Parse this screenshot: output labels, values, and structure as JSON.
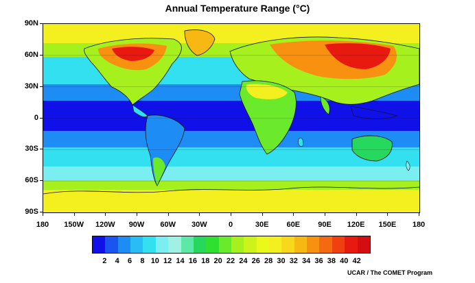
{
  "title": "Annual Temperature Range (°C)",
  "credit": "UCAR / The COMET Program",
  "lat_labels": [
    "90N",
    "60N",
    "30N",
    "0",
    "30S",
    "60S",
    "90S"
  ],
  "lon_labels": [
    "180",
    "150W",
    "120W",
    "90W",
    "60W",
    "30W",
    "0",
    "30E",
    "60E",
    "90E",
    "120E",
    "150E",
    "180"
  ],
  "colorbar": {
    "labels": [
      "2",
      "4",
      "6",
      "8",
      "10",
      "12",
      "14",
      "16",
      "18",
      "20",
      "22",
      "24",
      "26",
      "28",
      "30",
      "32",
      "34",
      "36",
      "38",
      "40",
      "42"
    ],
    "colors": [
      "#1010e8",
      "#1a55f0",
      "#1e8cf5",
      "#2abcf5",
      "#33e0f0",
      "#7aeef0",
      "#a0f0e4",
      "#5ee8a8",
      "#26d85e",
      "#30e030",
      "#6aea2a",
      "#a6f01e",
      "#cdf41a",
      "#eaf81a",
      "#f4ef1e",
      "#f8d81a",
      "#f8b814",
      "#f89010",
      "#f46a10",
      "#f04010",
      "#e81a10",
      "#d40e10"
    ]
  },
  "map_colors": {
    "ocean_tropics": "#1010e8",
    "ocean_mid": "#1e8cf5",
    "ocean_subtropic": "#33e0f0",
    "subpolar": "#a6f01e",
    "polar": "#f4ef1e",
    "continental_high": "#f04010"
  }
}
